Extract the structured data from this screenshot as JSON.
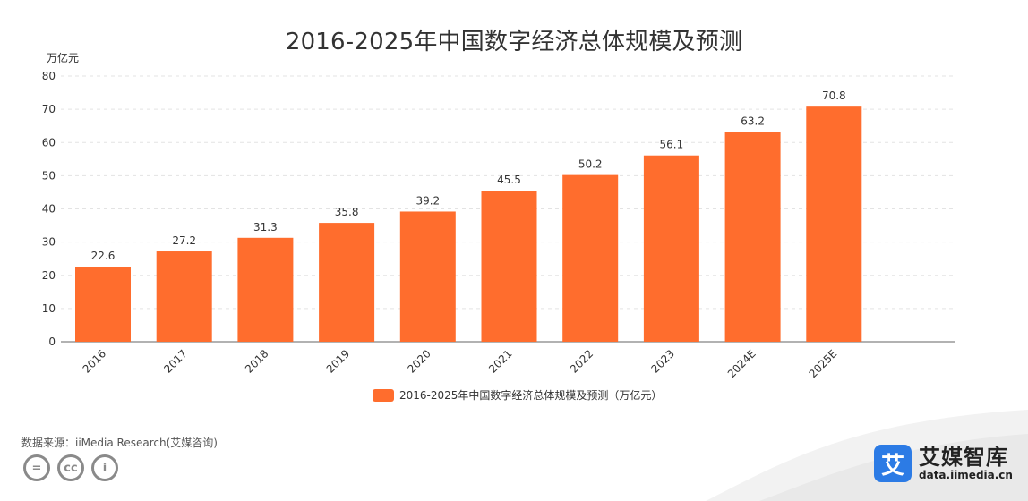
{
  "title": "2016-2025年中国数字经济总体规模及预测",
  "unit": "万亿元",
  "legend_label": "2016-2025年中国数字经济总体规模及预测（万亿元）",
  "source": "数据来源：iiMedia Research(艾媒咨询)",
  "brand": {
    "name": "艾媒智库",
    "url": "data.iimedia.cn",
    "logo_glyph": "艾",
    "color": "#2c7be5"
  },
  "chart_data": {
    "type": "bar",
    "title": "2016-2025年中国数字经济总体规模及预测",
    "ylabel": "万亿元",
    "categories": [
      "2016",
      "2017",
      "2018",
      "2019",
      "2020",
      "2021",
      "2022",
      "2023",
      "2024E",
      "2025E"
    ],
    "series": [
      {
        "name": "2016-2025年中国数字经济总体规模及预测（万亿元）",
        "values": [
          22.6,
          27.2,
          31.3,
          35.8,
          39.2,
          45.5,
          50.2,
          56.1,
          63.2,
          70.8
        ]
      }
    ],
    "ylim": [
      0,
      80
    ],
    "yticks": [
      0,
      10,
      20,
      30,
      40,
      50,
      60,
      70,
      80
    ],
    "grid": true,
    "legend_position": "bottom",
    "bar_color": "#FF6D2D"
  }
}
